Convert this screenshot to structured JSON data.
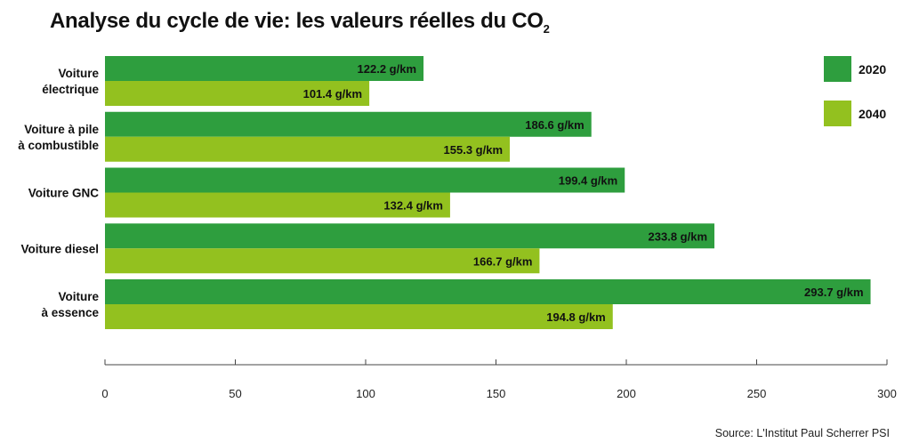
{
  "title": {
    "main": "Analyse du cycle de vie: les valeurs réelles du CO",
    "subscript": "2"
  },
  "source": "Source: L'Institut Paul Scherrer PSI",
  "colors": {
    "series_2020": "#2e9e3e",
    "series_2040": "#93c11f",
    "axis": "#444444"
  },
  "chart_data": {
    "type": "bar",
    "orientation": "horizontal",
    "categories": [
      [
        "Voiture",
        "électrique"
      ],
      [
        "Voiture à pile",
        "à combustible"
      ],
      [
        "Voiture GNC"
      ],
      [
        "Voiture diesel"
      ],
      [
        "Voiture",
        "à essence"
      ]
    ],
    "series": [
      {
        "name": "2020",
        "values": [
          122.2,
          186.6,
          199.4,
          233.8,
          293.7
        ],
        "labels": [
          "122.2 g/km",
          "186.6 g/km",
          "199.4 g/km",
          "233.8 g/km",
          "293.7 g/km"
        ]
      },
      {
        "name": "2040",
        "values": [
          101.4,
          155.3,
          132.4,
          166.7,
          194.8
        ],
        "labels": [
          "101.4 g/km",
          "155.3 g/km",
          "132.4 g/km",
          "166.7 g/km",
          "194.8 g/km"
        ]
      }
    ],
    "xlim": [
      0,
      300
    ],
    "xticks": [
      0,
      50,
      100,
      150,
      200,
      250,
      300
    ],
    "grid": false,
    "legend_position": "top-right"
  }
}
